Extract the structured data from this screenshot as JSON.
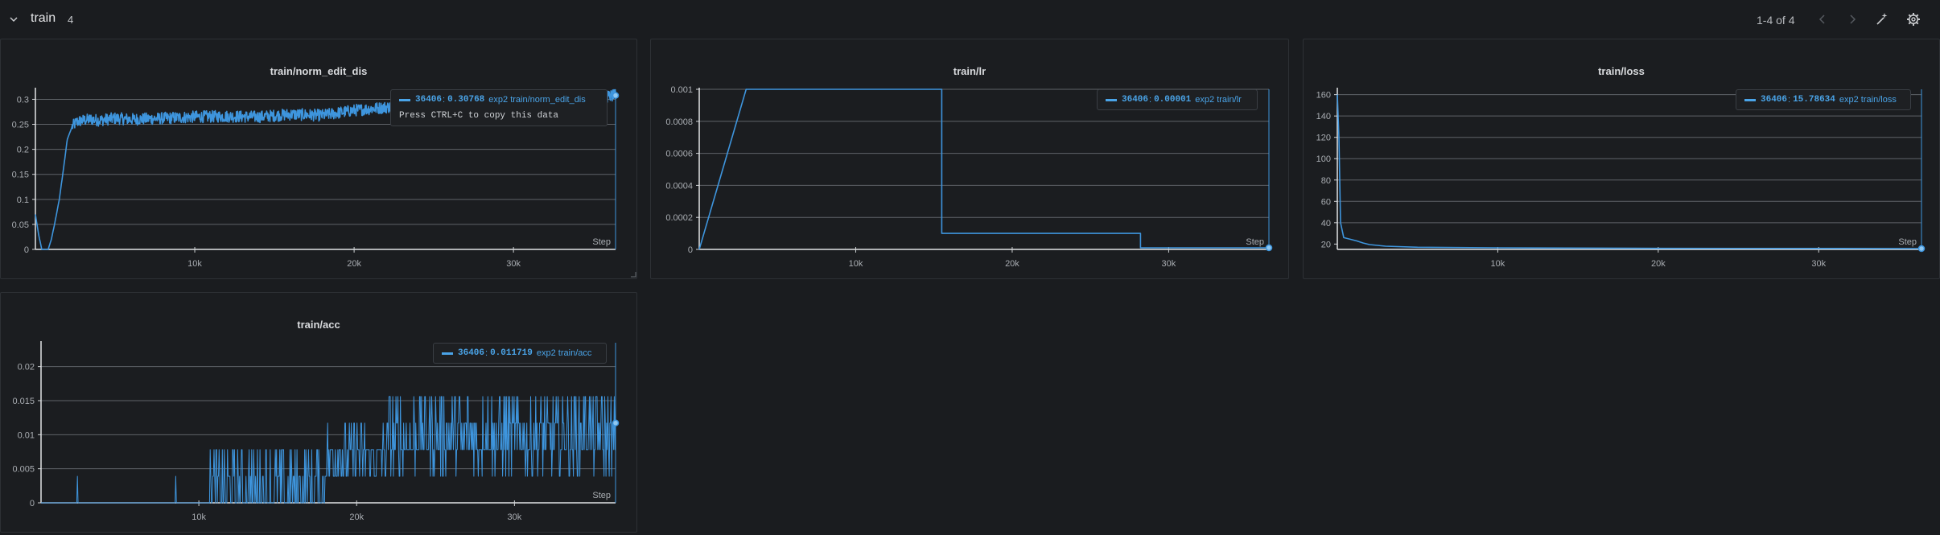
{
  "header": {
    "title": "train",
    "count": "4",
    "pager": "1-4 of 4"
  },
  "chart_data": [
    {
      "id": "norm",
      "type": "line",
      "title": "train/norm_edit_dis",
      "xlabel": "Step",
      "xlim": [
        0,
        36406
      ],
      "ylim": [
        0,
        0.32
      ],
      "x_ticks": [
        10000,
        20000,
        30000
      ],
      "x_tick_labels": [
        "10k",
        "20k",
        "30k"
      ],
      "y_ticks": [
        0,
        0.05,
        0.1,
        0.15,
        0.2,
        0.25,
        0.3
      ],
      "y_tick_labels": [
        "0",
        "0.05",
        "0.1",
        "0.15",
        "0.2",
        "0.25",
        "0.3"
      ],
      "grid": true,
      "color": "#3e95dd",
      "series": [
        {
          "run": "exp2",
          "x": [
            0,
            200,
            400,
            800,
            1000,
            1200,
            1500,
            1800,
            2000,
            2300,
            2600,
            3000,
            3500,
            4000,
            5000,
            6000,
            8000,
            10000,
            12000,
            14000,
            16000,
            18000,
            20000,
            22000,
            24000,
            26000,
            28000,
            30000,
            32000,
            34000,
            36406
          ],
          "y": [
            0.07,
            0.03,
            0.0,
            0.0,
            0.02,
            0.05,
            0.1,
            0.17,
            0.22,
            0.245,
            0.255,
            0.258,
            0.26,
            0.258,
            0.262,
            0.26,
            0.262,
            0.265,
            0.266,
            0.265,
            0.27,
            0.268,
            0.278,
            0.284,
            0.288,
            0.29,
            0.292,
            0.294,
            0.296,
            0.298,
            0.30768
          ],
          "noise": 0.012
        }
      ],
      "tooltip": {
        "step": "36406",
        "value": "0.30768",
        "run": "exp2 train/norm_edit_dis",
        "hint": "Press CTRL+C to copy this data"
      }
    },
    {
      "id": "lr",
      "type": "line",
      "title": "train/lr",
      "xlabel": "Step",
      "xlim": [
        0,
        36406
      ],
      "ylim": [
        0,
        0.001
      ],
      "x_ticks": [
        10000,
        20000,
        30000
      ],
      "x_tick_labels": [
        "10k",
        "20k",
        "30k"
      ],
      "y_ticks": [
        0,
        0.0002,
        0.0004,
        0.0006,
        0.0008,
        0.001
      ],
      "y_tick_labels": [
        "0",
        "0.0002",
        "0.0004",
        "0.0006",
        "0.0008",
        "0.001"
      ],
      "grid": true,
      "color": "#3e95dd",
      "series": [
        {
          "run": "exp2",
          "x": [
            0,
            3000,
            15500,
            15500,
            28200,
            28200,
            36406
          ],
          "y": [
            0,
            0.001,
            0.001,
            0.0001,
            0.0001,
            1e-05,
            1e-05
          ],
          "noise": 0
        }
      ],
      "tooltip": {
        "step": "36406",
        "value": "0.00001",
        "run": "exp2 train/lr"
      }
    },
    {
      "id": "loss",
      "type": "line",
      "title": "train/loss",
      "xlabel": "Step",
      "xlim": [
        0,
        36406
      ],
      "ylim": [
        15,
        165
      ],
      "x_ticks": [
        10000,
        20000,
        30000
      ],
      "x_tick_labels": [
        "10k",
        "20k",
        "30k"
      ],
      "y_ticks": [
        20,
        40,
        60,
        80,
        100,
        120,
        140,
        160
      ],
      "y_tick_labels": [
        "20",
        "40",
        "60",
        "80",
        "100",
        "120",
        "140",
        "160"
      ],
      "grid": true,
      "color": "#3e95dd",
      "series": [
        {
          "run": "exp2",
          "x": [
            0,
            100,
            200,
            400,
            800,
            1200,
            1600,
            2000,
            3000,
            5000,
            10000,
            20000,
            30000,
            36406
          ],
          "y": [
            160,
            120,
            40,
            26,
            24.5,
            23,
            21,
            19.5,
            18,
            17,
            16.5,
            16,
            15.9,
            15.78634
          ],
          "noise": 0
        }
      ],
      "tooltip": {
        "step": "36406",
        "value": "15.78634",
        "run": "exp2 train/loss"
      }
    },
    {
      "id": "acc",
      "type": "line",
      "title": "train/acc",
      "xlabel": "Step",
      "xlim": [
        0,
        36406
      ],
      "ylim": [
        0,
        0.0235
      ],
      "x_ticks": [
        10000,
        20000,
        30000
      ],
      "x_tick_labels": [
        "10k",
        "20k",
        "30k"
      ],
      "y_ticks": [
        0,
        0.005,
        0.01,
        0.015,
        0.02
      ],
      "y_tick_labels": [
        "0",
        "0.005",
        "0.01",
        "0.015",
        "0.02"
      ],
      "grid": true,
      "color": "#3e95dd",
      "series": [
        {
          "run": "exp2",
          "x": [
            0,
            36406
          ],
          "y": [
            0,
            0.011719
          ],
          "levels": [
            0,
            0.0039,
            0.0078,
            0.0117,
            0.0156
          ],
          "noise": 0
        }
      ],
      "tooltip": {
        "step": "36406",
        "value": "0.011719",
        "run": "exp2 train/acc"
      }
    }
  ]
}
